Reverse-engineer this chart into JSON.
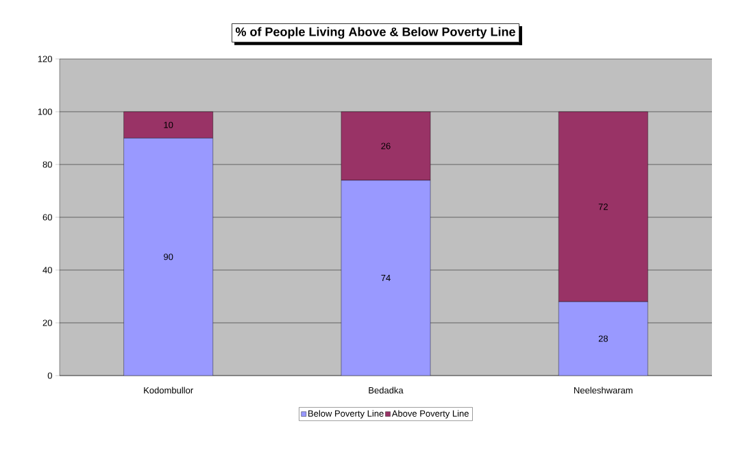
{
  "chart_data": {
    "type": "bar",
    "stacked": true,
    "title": "% of People Living Above & Below Poverty Line",
    "categories": [
      "Kodombullor",
      "Bedadka",
      "Neeleshwaram"
    ],
    "series": [
      {
        "name": "Below Poverty Line",
        "color": "#9999ff",
        "values": [
          90,
          74,
          28
        ]
      },
      {
        "name": "Above Poverty Line",
        "color": "#993366",
        "values": [
          10,
          26,
          72
        ]
      }
    ],
    "ylim": [
      0,
      120
    ],
    "yticks": [
      0,
      20,
      40,
      60,
      80,
      100,
      120
    ],
    "grid": "y",
    "legend": "bottom",
    "data_labels": true
  }
}
